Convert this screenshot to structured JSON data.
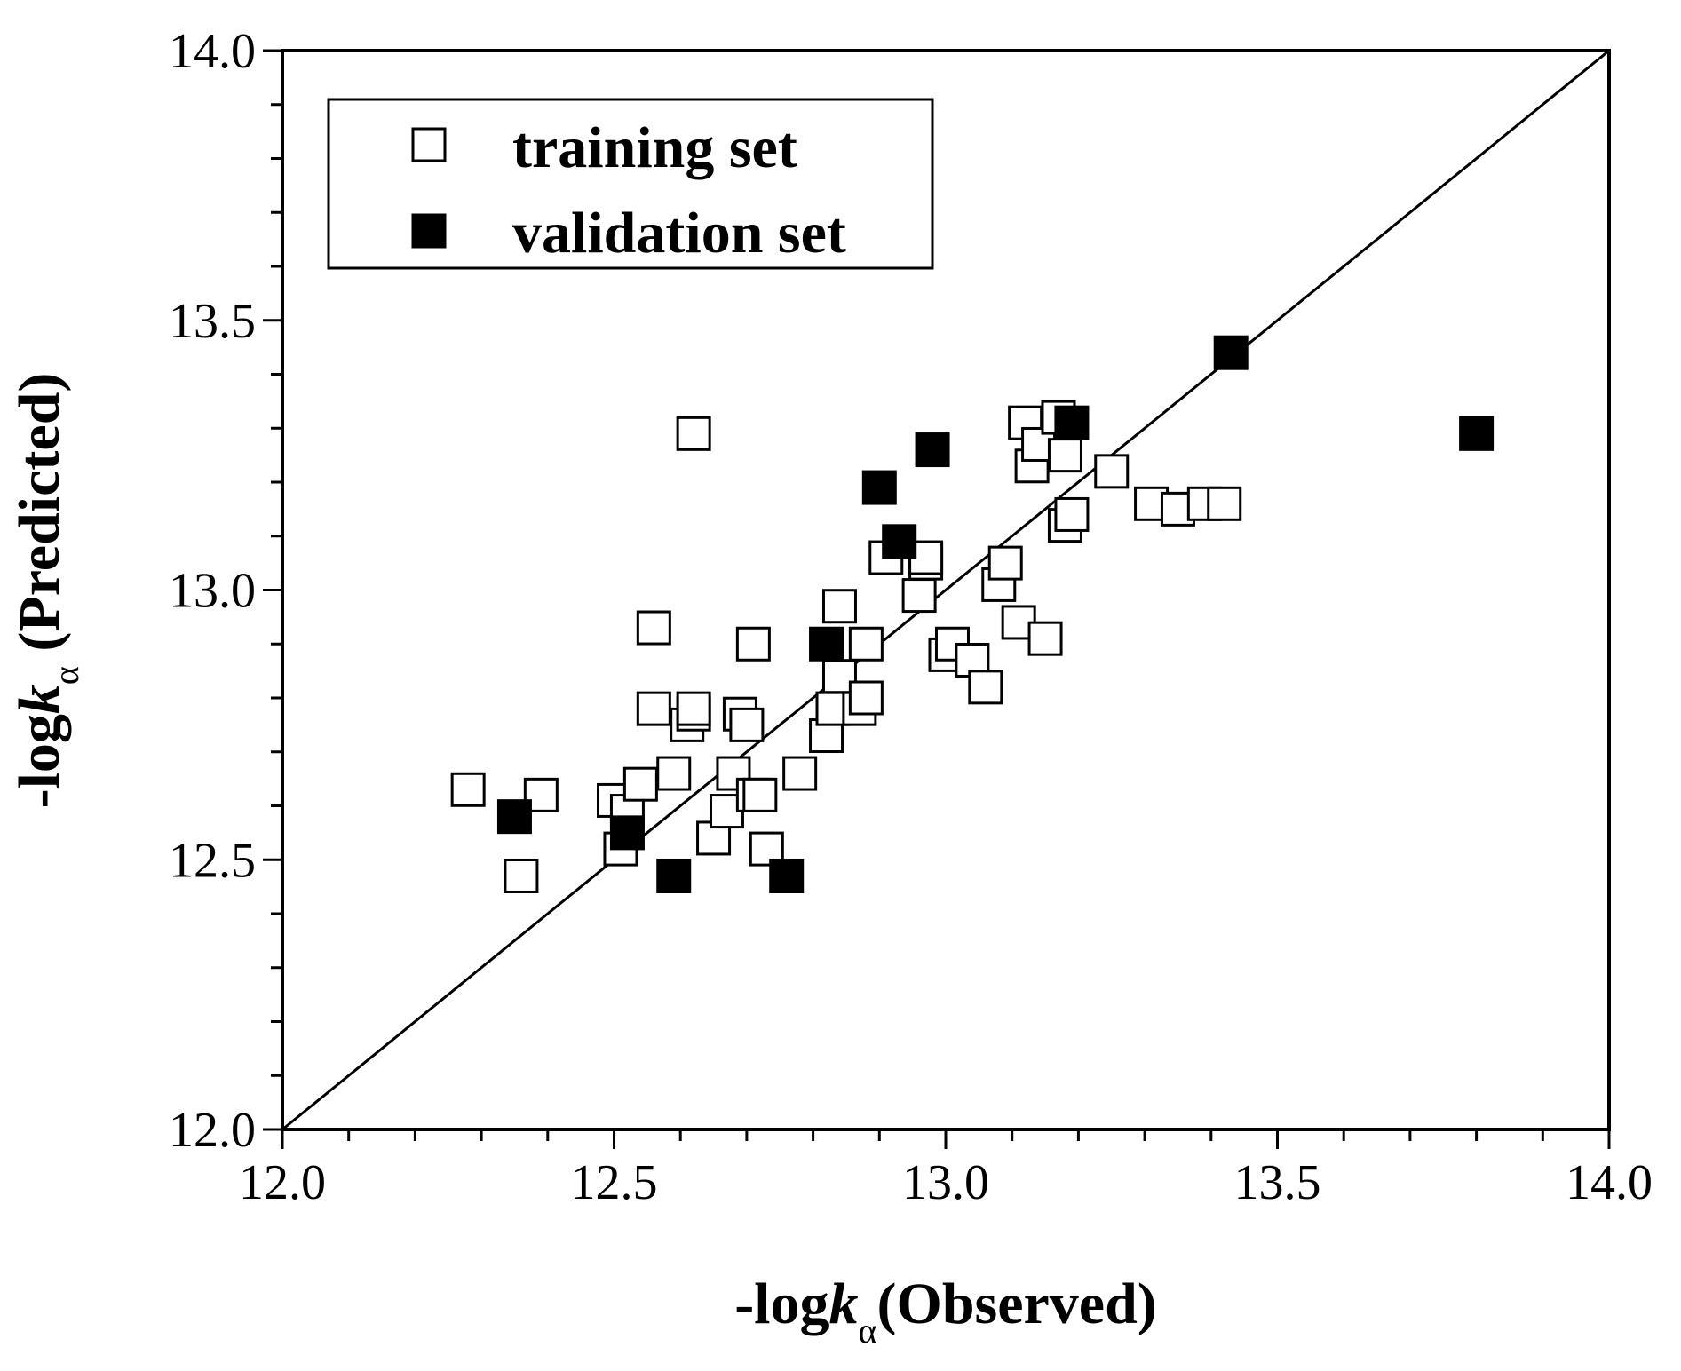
{
  "chart_data": {
    "type": "scatter",
    "title": "",
    "xlabel": {
      "prefix": "-log",
      "var": "k",
      "sub": "α",
      "suffix": "(Observed)"
    },
    "ylabel": {
      "prefix": "-log",
      "var": "k",
      "sub": "α",
      "suffix": " (Predicted)"
    },
    "xlim": [
      12.0,
      14.0
    ],
    "ylim": [
      12.0,
      14.0
    ],
    "xticks": [
      "12.0",
      "12.5",
      "13.0",
      "13.5",
      "14.0"
    ],
    "yticks": [
      "12.0",
      "12.5",
      "13.0",
      "13.5",
      "14.0"
    ],
    "x_tick_values": [
      12.0,
      12.5,
      13.0,
      13.5,
      14.0
    ],
    "y_tick_values": [
      12.0,
      12.5,
      13.0,
      13.5,
      14.0
    ],
    "minor_tick_step": 0.1,
    "reference_line": {
      "from": [
        12.0,
        12.0
      ],
      "to": [
        14.0,
        14.0
      ]
    },
    "legend_position": "top-left",
    "series": [
      {
        "name": "training set",
        "marker": "open-square",
        "x": [
          12.28,
          12.36,
          12.39,
          12.5,
          12.51,
          12.52,
          12.54,
          12.56,
          12.56,
          12.59,
          12.61,
          12.62,
          12.62,
          12.62,
          12.65,
          12.67,
          12.68,
          12.69,
          12.7,
          12.71,
          12.71,
          12.72,
          12.73,
          12.78,
          12.82,
          12.83,
          12.84,
          12.84,
          12.87,
          12.88,
          12.88,
          12.91,
          12.96,
          12.97,
          12.97,
          13.0,
          13.01,
          13.04,
          13.06,
          13.08,
          13.09,
          13.11,
          13.12,
          13.13,
          13.14,
          13.15,
          13.17,
          13.18,
          13.18,
          13.19,
          13.25,
          13.31,
          13.35,
          13.39,
          13.42
        ],
        "y": [
          12.63,
          12.47,
          12.62,
          12.61,
          12.52,
          12.59,
          12.64,
          12.78,
          12.93,
          12.66,
          12.75,
          12.77,
          12.78,
          13.29,
          12.54,
          12.59,
          12.66,
          12.77,
          12.75,
          12.62,
          12.9,
          12.62,
          12.52,
          12.66,
          12.73,
          12.78,
          12.84,
          12.97,
          12.78,
          12.8,
          12.9,
          13.06,
          12.99,
          13.05,
          13.06,
          12.88,
          12.9,
          12.87,
          12.82,
          13.01,
          13.05,
          12.94,
          13.31,
          13.23,
          13.27,
          12.91,
          13.32,
          13.12,
          13.25,
          13.14,
          13.22,
          13.16,
          13.15,
          13.16,
          13.16
        ]
      },
      {
        "name": "validation set",
        "marker": "filled-square",
        "x": [
          12.35,
          12.52,
          12.59,
          12.76,
          12.82,
          12.9,
          12.93,
          12.98,
          13.19,
          13.43,
          13.8
        ],
        "y": [
          12.58,
          12.55,
          12.47,
          12.47,
          12.9,
          13.19,
          13.09,
          13.26,
          13.31,
          13.44,
          13.29
        ]
      }
    ]
  },
  "legend": {
    "entries": [
      "training set",
      "validation set"
    ]
  },
  "colors": {
    "axis": "#000000",
    "marker_fill_training": "#ffffff",
    "marker_fill_validation": "#000000"
  }
}
